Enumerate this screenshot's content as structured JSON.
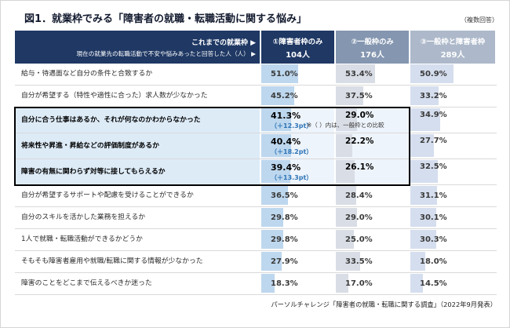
{
  "title": "図1．就業枠でみる「障害者の就職・転職活動に関する悩み」",
  "multi_answer_note": "（複数回答）",
  "table": {
    "header_left_line1": "これまでの就業枠 ▶",
    "header_left_line2": "現在の就業先の転職活動で不安や悩みあったと回答した人（人） ▶",
    "columns": [
      {
        "label": "①障害者枠のみ",
        "count": "104人"
      },
      {
        "label": "②一般枠のみ",
        "count": "176人"
      },
      {
        "label": "③一般枠と障害者枠",
        "count": "289人"
      }
    ],
    "comparison_note": "※（ ）内は、一般枠との比較"
  },
  "rows": [
    {
      "label": "給与・待遇面など自分の条件と合致するか",
      "values": [
        "51.0%",
        "53.4%",
        "50.9%"
      ],
      "highlight": false
    },
    {
      "label": "自分が希望する（特性や適性に合った）求人数が少なかった",
      "values": [
        "45.2%",
        "37.5%",
        "33.2%"
      ],
      "highlight": false
    },
    {
      "label": "自分に合う仕事はあるか、それが何なのかわからなかった",
      "values": [
        "41.3%",
        "29.0%",
        "34.9%"
      ],
      "diff": "（＋12.3pt）",
      "highlight": true
    },
    {
      "label": "将来性や昇進・昇給などの評価制度があるか",
      "values": [
        "40.4%",
        "22.2%",
        "27.7%"
      ],
      "diff": "（＋18.2pt）",
      "highlight": true
    },
    {
      "label": "障害の有無に関わらず対等に接してもらえるか",
      "values": [
        "39.4%",
        "26.1%",
        "32.5%"
      ],
      "diff": "（＋13.3pt）",
      "highlight": true
    },
    {
      "label": "自分が希望するサポートや配慮を受けることができるか",
      "values": [
        "36.5%",
        "28.4%",
        "31.1%"
      ],
      "highlight": false
    },
    {
      "label": "自分のスキルを活かした業務を担えるか",
      "values": [
        "29.8%",
        "29.0%",
        "30.1%"
      ],
      "highlight": false
    },
    {
      "label": "1人で就職・転職活動ができるかどうか",
      "values": [
        "29.8%",
        "25.0%",
        "30.3%"
      ],
      "highlight": false
    },
    {
      "label": "そもそも障害者雇用や就職/転職に関する情報が少なかった",
      "values": [
        "27.9%",
        "33.5%",
        "18.0%"
      ],
      "highlight": false
    },
    {
      "label": "障害のことをどこまで伝えるべきか迷った",
      "values": [
        "18.3%",
        "17.0%",
        "14.5%"
      ],
      "highlight": false
    }
  ],
  "footer": "パーソルチャレンジ「障害者の就職・転職に関する調査」（2022年9月発表）",
  "colors": {
    "header_navy": "#1f3864",
    "header_gray_blue": "#8496b0",
    "header_light_gray_blue": "#adb9ca",
    "bar_col1": "#bdd7ee",
    "bar_col2": "#d9dde5",
    "bar_col3": "#d5deee",
    "highlight_row_bg": "#ddebf7",
    "diff_text_blue": "#2e75b6"
  },
  "chart_data": {
    "type": "table",
    "title": "図1．就業枠でみる「障害者の就職・転職活動に関する悩み」（複数回答）",
    "categories": [
      "給与・待遇面など自分の条件と合致するか",
      "自分が希望する（特性や適性に合った）求人数が少なかった",
      "自分に合う仕事はあるか、それが何なのかわからなかった",
      "将来性や昇進・昇給などの評価制度があるか",
      "障害の有無に関わらず対等に接してもらえるか",
      "自分が希望するサポートや配慮を受けることができるか",
      "自分のスキルを活かした業務を担えるか",
      "1人で就職・転職活動ができるかどうか",
      "そもそも障害者雇用や就職/転職に関する情報が少なかった",
      "障害のことをどこまで伝えるべきか迷った"
    ],
    "series": [
      {
        "name": "①障害者枠のみ",
        "n": 104,
        "unit": "%",
        "values": [
          51.0,
          45.2,
          41.3,
          40.4,
          39.4,
          36.5,
          29.8,
          29.8,
          27.9,
          18.3
        ]
      },
      {
        "name": "②一般枠のみ",
        "n": 176,
        "unit": "%",
        "values": [
          53.4,
          37.5,
          29.0,
          22.2,
          26.1,
          28.4,
          29.0,
          25.0,
          33.5,
          17.0
        ]
      },
      {
        "name": "③一般枠と障害者枠",
        "n": 289,
        "unit": "%",
        "values": [
          50.9,
          33.2,
          34.9,
          27.7,
          32.5,
          31.1,
          30.1,
          30.3,
          18.0,
          14.5
        ]
      }
    ],
    "highlighted_rows": [
      2,
      3,
      4
    ],
    "diff_vs_general_pt": {
      "row2": "+12.3pt",
      "row3": "+18.2pt",
      "row4": "+13.3pt"
    },
    "bar_scale_max": 100,
    "source": "パーソルチャレンジ「障害者の就職・転職に関する調査」（2022年9月発表）"
  }
}
